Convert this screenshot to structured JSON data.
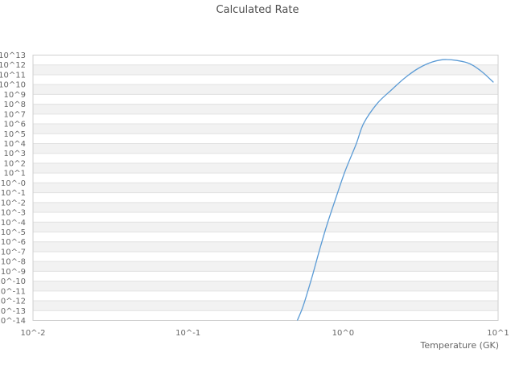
{
  "chart_data": {
    "type": "line",
    "title": "Calculated Rate",
    "xlabel": "Temperature (GK)",
    "ylabel": "",
    "x_scale": "log",
    "y_scale": "log",
    "xlim": [
      0.01,
      10
    ],
    "ylim": [
      1e-14,
      10000000000000.0
    ],
    "x_range_log10": [
      -2,
      1
    ],
    "y_range_log10": [
      -14,
      13
    ],
    "grid": "horizontal-bands",
    "legend": "none",
    "x_tick_values": [
      0.01,
      0.1,
      1,
      10
    ],
    "x_tick_labels": [
      "10^-2",
      "10^-1",
      "10^0",
      "10^1"
    ],
    "y_tick_labels": [
      "10^13",
      "10^12",
      "10^11",
      "10^10",
      "10^9",
      "10^8",
      "10^7",
      "10^6",
      "10^5",
      "10^4",
      "10^3",
      "10^2",
      "10^1",
      "10^-0",
      "10^-1",
      "10^-2",
      "10^-3",
      "10^-4",
      "10^-5",
      "10^-6",
      "10^-7",
      "10^-8",
      "10^-9",
      "10^-10",
      "10^-11",
      "10^-12",
      "10^-13",
      "10^-14"
    ],
    "colors": {
      "line": "#5b9bd5",
      "band_gray": "#f2f2f2",
      "band_white": "#ffffff",
      "gridline": "#e1e1e1",
      "frame": "#cfcfcf",
      "tick_text": "#666666",
      "title_text": "#4e4e4e"
    },
    "series": [
      {
        "color": "#5b9bd5",
        "points": [
          [
            0.507,
            1e-14
          ],
          [
            0.554,
            3.2e-13
          ],
          [
            0.625,
            1.6e-10
          ],
          [
            0.7,
            1e-07
          ],
          [
            0.786,
            5e-05
          ],
          [
            0.896,
            0.025
          ],
          [
            1.03,
            15.0
          ],
          [
            1.21,
            7600.0
          ],
          [
            1.36,
            1200000.0
          ],
          [
            1.67,
            130000000.0
          ],
          [
            2.05,
            2800000000.0
          ],
          [
            2.5,
            47000000000.0
          ],
          [
            3.06,
            450000000000.0
          ],
          [
            3.77,
            2000000000000.0
          ],
          [
            4.66,
            3500000000000.0
          ],
          [
            6.29,
            1700000000000.0
          ],
          [
            7.73,
            250000000000.0
          ],
          [
            9.3,
            18000000000.0
          ]
        ]
      }
    ]
  }
}
